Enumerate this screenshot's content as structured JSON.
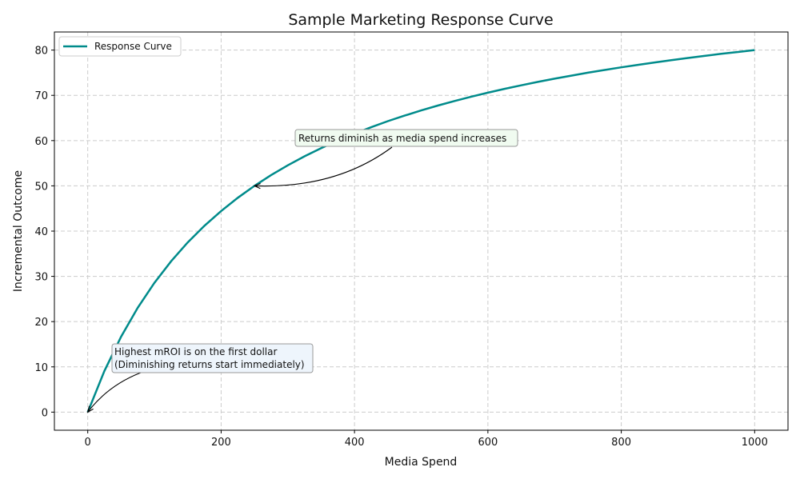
{
  "chart_data": {
    "type": "line",
    "title": "Sample Marketing Response Curve",
    "xlabel": "Media Spend",
    "ylabel": "Incremental Outcome",
    "xlim": [
      -50,
      1050
    ],
    "ylim": [
      -4,
      84
    ],
    "xticks": [
      0,
      200,
      400,
      600,
      800,
      1000
    ],
    "yticks": [
      0,
      10,
      20,
      30,
      40,
      50,
      60,
      70,
      80
    ],
    "grid": true,
    "legend_position": "top-left",
    "series": [
      {
        "name": "Response Curve",
        "color": "#008b8b",
        "x": [
          0,
          25,
          50,
          75,
          100,
          125,
          150,
          175,
          200,
          225,
          250,
          275,
          300,
          325,
          350,
          375,
          400,
          425,
          450,
          475,
          500,
          525,
          550,
          575,
          600,
          625,
          650,
          675,
          700,
          725,
          750,
          775,
          800,
          825,
          850,
          875,
          900,
          925,
          950,
          975,
          1000
        ],
        "y": [
          0,
          9.09,
          16.67,
          23.08,
          28.57,
          33.33,
          37.5,
          41.18,
          44.44,
          47.37,
          50,
          52.38,
          54.55,
          56.52,
          58.33,
          60,
          61.54,
          62.96,
          64.29,
          65.52,
          66.67,
          67.74,
          68.75,
          69.7,
          70.59,
          71.43,
          72.22,
          72.97,
          73.68,
          74.36,
          75,
          75.61,
          76.19,
          76.74,
          77.27,
          77.78,
          78.26,
          78.72,
          79.17,
          79.59,
          80
        ]
      }
    ],
    "annotations": [
      {
        "text": "Returns diminish as media spend increases",
        "point": [
          250,
          50
        ],
        "box_color": "#f0fbf0"
      },
      {
        "text_lines": [
          "Highest mROI is on the first dollar",
          "(Diminishing returns start immediately)"
        ],
        "point": [
          0,
          0
        ],
        "box_color": "#eef5fc"
      }
    ]
  }
}
